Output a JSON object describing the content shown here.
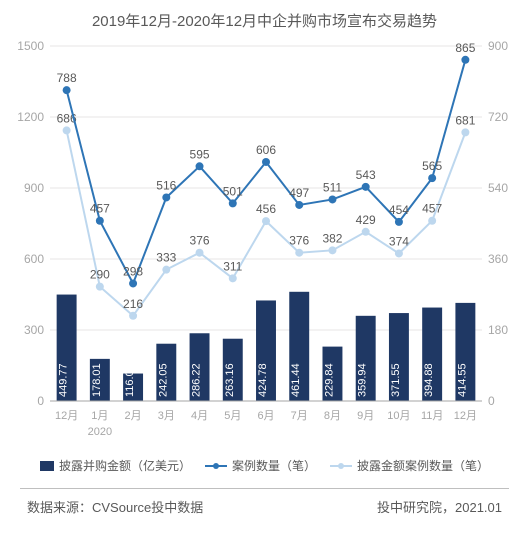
{
  "title": "2019年12月-2020年12月中企并购市场宣布交易趋势",
  "chart": {
    "type": "combo-bar-line",
    "categories": [
      "12月",
      "1月",
      "2月",
      "3月",
      "4月",
      "5月",
      "6月",
      "7月",
      "8月",
      "9月",
      "10月",
      "11月",
      "12月"
    ],
    "year_sub_label": "2020",
    "bars": {
      "label": "披露并购金额（亿美元）",
      "values": [
        449.77,
        178.01,
        116.04,
        242.05,
        286.22,
        263.16,
        424.78,
        461.44,
        229.84,
        359.94,
        371.55,
        394.88,
        414.55
      ],
      "color": "#1f3864",
      "bar_width": 0.6
    },
    "line1": {
      "label": "案例数量（笔）",
      "values": [
        788,
        457,
        298,
        516,
        595,
        501,
        606,
        497,
        511,
        543,
        454,
        565,
        865
      ],
      "color": "#2e75b6",
      "marker": "circle",
      "marker_size": 4,
      "line_width": 2
    },
    "line2": {
      "label": "披露金额案例数量（笔）",
      "values": [
        686,
        290,
        216,
        333,
        376,
        311,
        456,
        376,
        382,
        429,
        374,
        457,
        681
      ],
      "color": "#bdd7ee",
      "marker": "circle",
      "marker_size": 4,
      "line_width": 2
    },
    "y_left": {
      "min": 0,
      "max": 1500,
      "step": 300,
      "ticks": [
        0,
        300,
        600,
        900,
        1200,
        1500
      ]
    },
    "y_right": {
      "min": 0,
      "max": 900,
      "step": 180,
      "ticks": [
        0,
        180,
        360,
        540,
        720,
        900
      ]
    },
    "grid_color": "#e7e6e6",
    "axis_text_color": "#a6a6a6",
    "label_text_color": "#595959",
    "background": "#ffffff"
  },
  "footer": {
    "source_label": "数据来源：CVSource投中数据",
    "publisher_label": "投中研究院，2021.01"
  }
}
